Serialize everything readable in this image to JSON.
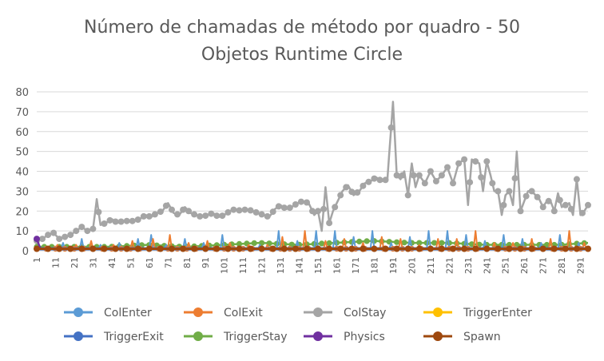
{
  "chart_data": {
    "type": "line",
    "title_line1": "Número de chamadas de método por quadro - 50",
    "title_line2": "Objetos Runtime Circle",
    "xlabel": "",
    "ylabel": "",
    "ylim": [
      0,
      80
    ],
    "yticks": [
      "0",
      "10",
      "20",
      "30",
      "40",
      "50",
      "60",
      "70",
      "80"
    ],
    "xtick_labels": [
      "1",
      "11",
      "21",
      "31",
      "41",
      "51",
      "61",
      "71",
      "81",
      "91",
      "101",
      "111",
      "121",
      "131",
      "141",
      "151",
      "161",
      "171",
      "181",
      "191",
      "201",
      "211",
      "221",
      "231",
      "241",
      "251",
      "261",
      "271",
      "281",
      "291"
    ],
    "x_count": 295,
    "grid": "horizontal",
    "legend_position": "bottom",
    "series": [
      {
        "name": "ColEnter",
        "color": "#5B9BD5"
      },
      {
        "name": "ColExit",
        "color": "#ED7D31"
      },
      {
        "name": "ColStay",
        "color": "#A5A5A5"
      },
      {
        "name": "TriggerEnter",
        "color": "#FFC000"
      },
      {
        "name": "TriggerExit",
        "color": "#4472C4"
      },
      {
        "name": "TriggerStay",
        "color": "#70AD47"
      },
      {
        "name": "Physics",
        "color": "#7030A0"
      },
      {
        "name": "Spawn",
        "color": "#9E480E"
      }
    ],
    "colstay_points": [
      [
        1,
        5
      ],
      [
        4,
        6
      ],
      [
        7,
        8
      ],
      [
        10,
        9
      ],
      [
        13,
        6
      ],
      [
        16,
        7
      ],
      [
        19,
        8
      ],
      [
        22,
        10
      ],
      [
        25,
        12
      ],
      [
        28,
        10
      ],
      [
        31,
        11
      ],
      [
        33,
        26
      ],
      [
        35,
        13
      ],
      [
        38,
        14
      ],
      [
        41,
        16
      ],
      [
        44,
        14
      ],
      [
        47,
        15
      ],
      [
        50,
        15
      ],
      [
        53,
        15
      ],
      [
        56,
        16
      ],
      [
        59,
        18
      ],
      [
        62,
        17
      ],
      [
        65,
        19
      ],
      [
        68,
        20
      ],
      [
        71,
        24
      ],
      [
        74,
        19
      ],
      [
        77,
        18
      ],
      [
        80,
        22
      ],
      [
        83,
        19
      ],
      [
        86,
        18
      ],
      [
        89,
        17
      ],
      [
        92,
        18
      ],
      [
        95,
        19
      ],
      [
        98,
        17
      ],
      [
        101,
        18
      ],
      [
        104,
        20
      ],
      [
        107,
        21
      ],
      [
        110,
        20
      ],
      [
        113,
        21
      ],
      [
        116,
        20
      ],
      [
        119,
        19
      ],
      [
        122,
        18
      ],
      [
        125,
        17
      ],
      [
        128,
        21
      ],
      [
        131,
        23
      ],
      [
        134,
        21
      ],
      [
        137,
        22
      ],
      [
        140,
        24
      ],
      [
        143,
        25
      ],
      [
        146,
        24
      ],
      [
        149,
        18
      ],
      [
        151,
        20
      ],
      [
        153,
        10
      ],
      [
        155,
        32
      ],
      [
        157,
        14
      ],
      [
        159,
        20
      ],
      [
        161,
        24
      ],
      [
        164,
        30
      ],
      [
        167,
        33
      ],
      [
        170,
        28
      ],
      [
        173,
        30
      ],
      [
        176,
        34
      ],
      [
        179,
        35
      ],
      [
        182,
        37
      ],
      [
        185,
        35
      ],
      [
        188,
        36
      ],
      [
        191,
        75
      ],
      [
        193,
        38
      ],
      [
        195,
        36
      ],
      [
        197,
        40
      ],
      [
        199,
        28
      ],
      [
        201,
        44
      ],
      [
        203,
        32
      ],
      [
        205,
        38
      ],
      [
        208,
        34
      ],
      [
        211,
        40
      ],
      [
        214,
        35
      ],
      [
        217,
        38
      ],
      [
        220,
        42
      ],
      [
        223,
        34
      ],
      [
        226,
        44
      ],
      [
        229,
        46
      ],
      [
        231,
        23
      ],
      [
        233,
        46
      ],
      [
        235,
        45
      ],
      [
        237,
        44
      ],
      [
        239,
        30
      ],
      [
        241,
        45
      ],
      [
        243,
        38
      ],
      [
        245,
        30
      ],
      [
        247,
        30
      ],
      [
        249,
        18
      ],
      [
        251,
        28
      ],
      [
        253,
        30
      ],
      [
        255,
        23
      ],
      [
        257,
        50
      ],
      [
        259,
        20
      ],
      [
        261,
        25
      ],
      [
        263,
        30
      ],
      [
        265,
        30
      ],
      [
        267,
        28
      ],
      [
        269,
        26
      ],
      [
        271,
        22
      ],
      [
        273,
        25
      ],
      [
        275,
        25
      ],
      [
        277,
        20
      ],
      [
        279,
        29
      ],
      [
        281,
        22
      ],
      [
        283,
        23
      ],
      [
        285,
        24
      ],
      [
        287,
        18
      ],
      [
        289,
        36
      ],
      [
        291,
        18
      ],
      [
        293,
        20
      ],
      [
        295,
        23
      ]
    ],
    "colenter_points": [
      [
        1,
        1
      ],
      [
        15,
        4
      ],
      [
        25,
        6
      ],
      [
        35,
        3
      ],
      [
        45,
        4
      ],
      [
        55,
        6
      ],
      [
        62,
        8
      ],
      [
        70,
        3
      ],
      [
        80,
        6
      ],
      [
        90,
        4
      ],
      [
        100,
        8
      ],
      [
        110,
        2
      ],
      [
        120,
        3
      ],
      [
        130,
        10
      ],
      [
        140,
        5
      ],
      [
        150,
        10
      ],
      [
        160,
        10
      ],
      [
        170,
        7
      ],
      [
        180,
        10
      ],
      [
        190,
        4
      ],
      [
        200,
        7
      ],
      [
        210,
        10
      ],
      [
        220,
        10
      ],
      [
        230,
        8
      ],
      [
        240,
        5
      ],
      [
        250,
        8
      ],
      [
        260,
        6
      ],
      [
        270,
        4
      ],
      [
        280,
        8
      ],
      [
        290,
        4
      ]
    ],
    "colexit_points": [
      [
        1,
        1
      ],
      [
        12,
        3
      ],
      [
        22,
        3
      ],
      [
        30,
        5
      ],
      [
        42,
        3
      ],
      [
        52,
        5
      ],
      [
        63,
        6
      ],
      [
        72,
        8
      ],
      [
        82,
        4
      ],
      [
        92,
        5
      ],
      [
        104,
        4
      ],
      [
        114,
        3
      ],
      [
        124,
        3
      ],
      [
        132,
        7
      ],
      [
        144,
        10
      ],
      [
        155,
        5
      ],
      [
        165,
        6
      ],
      [
        175,
        4
      ],
      [
        185,
        7
      ],
      [
        195,
        6
      ],
      [
        205,
        3
      ],
      [
        215,
        6
      ],
      [
        225,
        6
      ],
      [
        235,
        10
      ],
      [
        245,
        4
      ],
      [
        255,
        4
      ],
      [
        265,
        6
      ],
      [
        275,
        6
      ],
      [
        285,
        10
      ],
      [
        293,
        4
      ]
    ],
    "triggerstay_points": [
      [
        1,
        2
      ],
      [
        20,
        2
      ],
      [
        40,
        2
      ],
      [
        60,
        3
      ],
      [
        80,
        2
      ],
      [
        100,
        3
      ],
      [
        120,
        4
      ],
      [
        140,
        3
      ],
      [
        160,
        4
      ],
      [
        180,
        5
      ],
      [
        200,
        4
      ],
      [
        220,
        4
      ],
      [
        240,
        3
      ],
      [
        260,
        3
      ],
      [
        280,
        3
      ],
      [
        295,
        4
      ]
    ],
    "physics_points": [
      [
        1,
        6
      ],
      [
        3,
        1
      ],
      [
        295,
        1
      ]
    ],
    "spawn_points": [
      [
        1,
        1
      ],
      [
        295,
        1
      ]
    ],
    "flat_one_series": [
      "TriggerEnter",
      "TriggerExit"
    ]
  }
}
